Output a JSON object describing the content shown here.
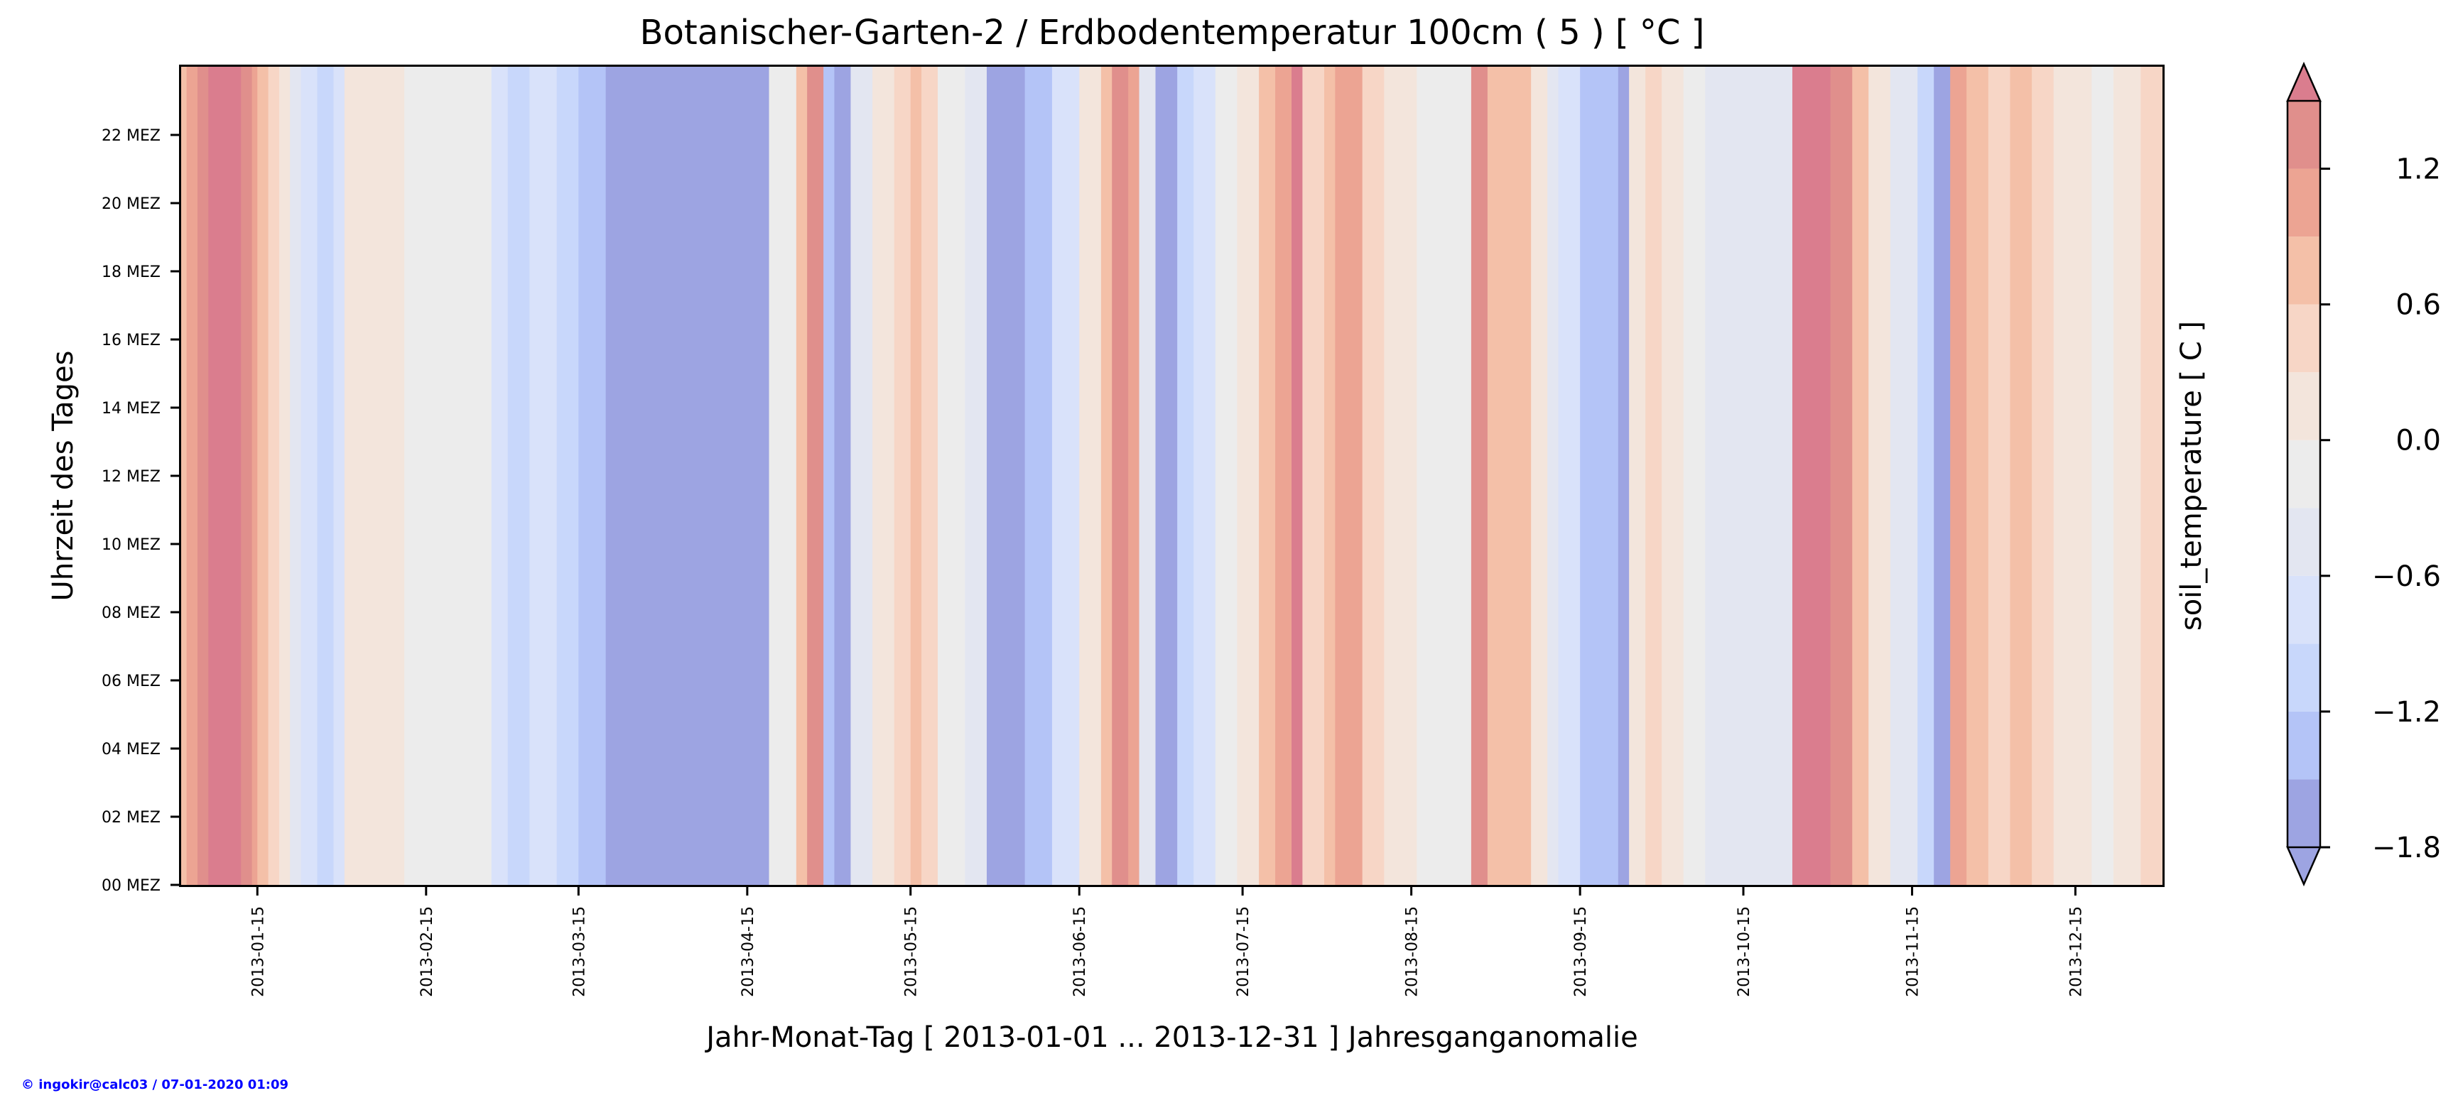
{
  "chart_data": {
    "type": "heatmap",
    "title": "Botanischer-Garten-2 / Erdbodentemperatur 100cm ( 5 ) [ °C ]",
    "xlabel": "Jahr-Monat-Tag [ 2013-01-01 ... 2013-12-31 ] Jahresganganomalie",
    "ylabel": "Uhrzeit des Tages",
    "colorbar_label": "soil_temperature [ C ]",
    "x_range": [
      "2013-01-01",
      "2013-12-31"
    ],
    "y_range_hours": [
      0,
      24
    ],
    "x_tick_labels": [
      "2013-01-15",
      "2013-02-15",
      "2013-03-15",
      "2013-04-15",
      "2013-05-15",
      "2013-06-15",
      "2013-07-15",
      "2013-08-15",
      "2013-09-15",
      "2013-10-15",
      "2013-11-15",
      "2013-12-15"
    ],
    "y_tick_labels": [
      "00 MEZ",
      "02 MEZ",
      "04 MEZ",
      "06 MEZ",
      "08 MEZ",
      "10 MEZ",
      "12 MEZ",
      "14 MEZ",
      "16 MEZ",
      "18 MEZ",
      "20 MEZ",
      "22 MEZ"
    ],
    "colorbar_ticks": [
      {
        "label": "1.2",
        "value": 1.2
      },
      {
        "label": "0.6",
        "value": 0.6
      },
      {
        "label": "0.0",
        "value": 0.0
      },
      {
        "label": "−0.6",
        "value": -0.6
      },
      {
        "label": "−1.2",
        "value": -1.2
      },
      {
        "label": "−1.8",
        "value": -1.8
      }
    ],
    "colorbar_range": [
      -1.8,
      1.5
    ],
    "levels": [
      {
        "from": -1.8,
        "to": -1.5,
        "color": "#9da4e2"
      },
      {
        "from": -1.5,
        "to": -1.2,
        "color": "#b4c4f7"
      },
      {
        "from": -1.2,
        "to": -0.9,
        "color": "#c8d7fb"
      },
      {
        "from": -0.9,
        "to": -0.6,
        "color": "#d9e2fa"
      },
      {
        "from": -0.6,
        "to": -0.3,
        "color": "#e3e6f1"
      },
      {
        "from": -0.3,
        "to": 0.0,
        "color": "#ececec"
      },
      {
        "from": 0.0,
        "to": 0.3,
        "color": "#f3e5dc"
      },
      {
        "from": 0.3,
        "to": 0.6,
        "color": "#f7d6c6"
      },
      {
        "from": 0.6,
        "to": 0.9,
        "color": "#f4c0a8"
      },
      {
        "from": 0.9,
        "to": 1.2,
        "color": "#eca493"
      },
      {
        "from": 1.2,
        "to": 1.5,
        "color": "#e08f8c"
      }
    ],
    "under_color": "#9da4e2",
    "over_color": "#da7d8e",
    "daily_anomaly": [
      {
        "start": "2013-01-01",
        "end": "2013-01-02",
        "value": 0.75
      },
      {
        "start": "2013-01-02",
        "end": "2013-01-04",
        "value": 1.0
      },
      {
        "start": "2013-01-04",
        "end": "2013-01-06",
        "value": 1.3
      },
      {
        "start": "2013-01-06",
        "end": "2013-01-12",
        "value": 1.6
      },
      {
        "start": "2013-01-12",
        "end": "2013-01-14",
        "value": 1.3
      },
      {
        "start": "2013-01-14",
        "end": "2013-01-15",
        "value": 1.0
      },
      {
        "start": "2013-01-15",
        "end": "2013-01-17",
        "value": 0.75
      },
      {
        "start": "2013-01-17",
        "end": "2013-01-19",
        "value": 0.45
      },
      {
        "start": "2013-01-19",
        "end": "2013-01-21",
        "value": 0.15
      },
      {
        "start": "2013-01-21",
        "end": "2013-01-23",
        "value": -0.45
      },
      {
        "start": "2013-01-23",
        "end": "2013-01-26",
        "value": -0.75
      },
      {
        "start": "2013-01-26",
        "end": "2013-01-29",
        "value": -1.05
      },
      {
        "start": "2013-01-29",
        "end": "2013-01-31",
        "value": -0.75
      },
      {
        "start": "2013-01-31",
        "end": "2013-02-11",
        "value": 0.15
      },
      {
        "start": "2013-02-11",
        "end": "2013-02-27",
        "value": -0.15
      },
      {
        "start": "2013-02-27",
        "end": "2013-03-02",
        "value": -0.75
      },
      {
        "start": "2013-03-02",
        "end": "2013-03-06",
        "value": -1.05
      },
      {
        "start": "2013-03-06",
        "end": "2013-03-11",
        "value": -0.75
      },
      {
        "start": "2013-03-11",
        "end": "2013-03-15",
        "value": -1.05
      },
      {
        "start": "2013-03-15",
        "end": "2013-03-20",
        "value": -1.35
      },
      {
        "start": "2013-03-20",
        "end": "2013-03-27",
        "value": -1.6
      },
      {
        "start": "2013-03-27",
        "end": "2013-04-14",
        "value": -1.9
      },
      {
        "start": "2013-04-14",
        "end": "2013-04-19",
        "value": -1.6
      },
      {
        "start": "2013-04-19",
        "end": "2013-04-24",
        "value": -0.15
      },
      {
        "start": "2013-04-24",
        "end": "2013-04-26",
        "value": 0.75
      },
      {
        "start": "2013-04-26",
        "end": "2013-04-29",
        "value": 1.3
      },
      {
        "start": "2013-04-29",
        "end": "2013-05-01",
        "value": -1.35
      },
      {
        "start": "2013-05-01",
        "end": "2013-05-04",
        "value": -1.6
      },
      {
        "start": "2013-05-04",
        "end": "2013-05-08",
        "value": -0.45
      },
      {
        "start": "2013-05-08",
        "end": "2013-05-12",
        "value": 0.15
      },
      {
        "start": "2013-05-12",
        "end": "2013-05-15",
        "value": 0.45
      },
      {
        "start": "2013-05-15",
        "end": "2013-05-17",
        "value": 0.75
      },
      {
        "start": "2013-05-17",
        "end": "2013-05-20",
        "value": 0.45
      },
      {
        "start": "2013-05-20",
        "end": "2013-05-25",
        "value": -0.15
      },
      {
        "start": "2013-05-25",
        "end": "2013-05-29",
        "value": -0.45
      },
      {
        "start": "2013-05-29",
        "end": "2013-06-05",
        "value": -1.8
      },
      {
        "start": "2013-06-05",
        "end": "2013-06-10",
        "value": -1.35
      },
      {
        "start": "2013-06-10",
        "end": "2013-06-15",
        "value": -0.75
      },
      {
        "start": "2013-06-15",
        "end": "2013-06-19",
        "value": 0.15
      },
      {
        "start": "2013-06-19",
        "end": "2013-06-21",
        "value": 0.75
      },
      {
        "start": "2013-06-21",
        "end": "2013-06-24",
        "value": 1.3
      },
      {
        "start": "2013-06-24",
        "end": "2013-06-26",
        "value": 1.0
      },
      {
        "start": "2013-06-26",
        "end": "2013-06-29",
        "value": -0.45
      },
      {
        "start": "2013-06-29",
        "end": "2013-07-03",
        "value": -1.7
      },
      {
        "start": "2013-07-03",
        "end": "2013-07-06",
        "value": -1.05
      },
      {
        "start": "2013-07-06",
        "end": "2013-07-10",
        "value": -0.75
      },
      {
        "start": "2013-07-10",
        "end": "2013-07-14",
        "value": -0.15
      },
      {
        "start": "2013-07-14",
        "end": "2013-07-18",
        "value": 0.15
      },
      {
        "start": "2013-07-18",
        "end": "2013-07-21",
        "value": 0.75
      },
      {
        "start": "2013-07-21",
        "end": "2013-07-24",
        "value": 1.0
      },
      {
        "start": "2013-07-24",
        "end": "2013-07-26",
        "value": 1.6
      },
      {
        "start": "2013-07-26",
        "end": "2013-07-30",
        "value": 0.45
      },
      {
        "start": "2013-07-30",
        "end": "2013-08-01",
        "value": 0.75
      },
      {
        "start": "2013-08-01",
        "end": "2013-08-06",
        "value": 1.0
      },
      {
        "start": "2013-08-06",
        "end": "2013-08-10",
        "value": 0.45
      },
      {
        "start": "2013-08-10",
        "end": "2013-08-16",
        "value": 0.15
      },
      {
        "start": "2013-08-16",
        "end": "2013-08-26",
        "value": -0.15
      },
      {
        "start": "2013-08-26",
        "end": "2013-08-29",
        "value": 1.3
      },
      {
        "start": "2013-08-29",
        "end": "2013-09-06",
        "value": 0.75
      },
      {
        "start": "2013-09-06",
        "end": "2013-09-09",
        "value": 0.15
      },
      {
        "start": "2013-09-09",
        "end": "2013-09-11",
        "value": -0.45
      },
      {
        "start": "2013-09-11",
        "end": "2013-09-15",
        "value": -0.75
      },
      {
        "start": "2013-09-15",
        "end": "2013-09-22",
        "value": -1.35
      },
      {
        "start": "2013-09-22",
        "end": "2013-09-24",
        "value": -1.6
      },
      {
        "start": "2013-09-24",
        "end": "2013-09-27",
        "value": 0.15
      },
      {
        "start": "2013-09-27",
        "end": "2013-09-30",
        "value": 0.45
      },
      {
        "start": "2013-09-30",
        "end": "2013-10-04",
        "value": 0.15
      },
      {
        "start": "2013-10-04",
        "end": "2013-10-08",
        "value": -0.15
      },
      {
        "start": "2013-10-08",
        "end": "2013-10-24",
        "value": -0.45
      },
      {
        "start": "2013-10-24",
        "end": "2013-10-31",
        "value": 1.6
      },
      {
        "start": "2013-10-31",
        "end": "2013-11-04",
        "value": 1.3
      },
      {
        "start": "2013-11-04",
        "end": "2013-11-07",
        "value": 0.75
      },
      {
        "start": "2013-11-07",
        "end": "2013-11-11",
        "value": 0.15
      },
      {
        "start": "2013-11-11",
        "end": "2013-11-16",
        "value": -0.45
      },
      {
        "start": "2013-11-16",
        "end": "2013-11-19",
        "value": -1.05
      },
      {
        "start": "2013-11-19",
        "end": "2013-11-22",
        "value": -1.6
      },
      {
        "start": "2013-11-22",
        "end": "2013-11-25",
        "value": 1.0
      },
      {
        "start": "2013-11-25",
        "end": "2013-11-29",
        "value": 0.75
      },
      {
        "start": "2013-11-29",
        "end": "2013-12-03",
        "value": 0.45
      },
      {
        "start": "2013-12-03",
        "end": "2013-12-07",
        "value": 0.75
      },
      {
        "start": "2013-12-07",
        "end": "2013-12-11",
        "value": 0.45
      },
      {
        "start": "2013-12-11",
        "end": "2013-12-18",
        "value": 0.15
      },
      {
        "start": "2013-12-18",
        "end": "2013-12-22",
        "value": -0.15
      },
      {
        "start": "2013-12-22",
        "end": "2013-12-27",
        "value": 0.15
      },
      {
        "start": "2013-12-27",
        "end": "2013-12-31",
        "value": 0.45
      }
    ]
  },
  "footer": {
    "credit": "© ingokir@calc03 / 07-01-2020 01:09",
    "credit_color": "#0000ff"
  }
}
